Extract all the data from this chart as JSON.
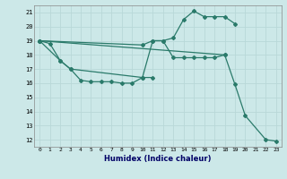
{
  "xlabel": "Humidex (Indice chaleur)",
  "ylabel": "",
  "bg_color": "#cce8e8",
  "grid_color": "#b8d8d8",
  "line_color": "#2a7a6a",
  "xlim": [
    -0.5,
    23.5
  ],
  "ylim": [
    11.5,
    21.5
  ],
  "xticks": [
    0,
    1,
    2,
    3,
    4,
    5,
    6,
    7,
    8,
    9,
    10,
    11,
    12,
    13,
    14,
    15,
    16,
    17,
    18,
    19,
    20,
    21,
    22,
    23
  ],
  "yticks": [
    12,
    13,
    14,
    15,
    16,
    17,
    18,
    19,
    20,
    21
  ],
  "series": [
    {
      "x": [
        0,
        1,
        2,
        3,
        4,
        5,
        6,
        7,
        8,
        9,
        10,
        11
      ],
      "y": [
        19,
        18.8,
        17.6,
        17.0,
        16.2,
        16.1,
        16.1,
        16.1,
        16.0,
        16.0,
        16.4,
        16.4
      ]
    },
    {
      "x": [
        0,
        2,
        3,
        10,
        11,
        12,
        13,
        14,
        15,
        16,
        17,
        18
      ],
      "y": [
        19,
        17.6,
        17.0,
        16.4,
        19.0,
        19.0,
        17.8,
        17.8,
        17.8,
        17.8,
        17.8,
        18.0
      ]
    },
    {
      "x": [
        0,
        10,
        11,
        12,
        13,
        14,
        15,
        16,
        17,
        18,
        19
      ],
      "y": [
        19,
        18.7,
        19.0,
        19.0,
        19.2,
        20.5,
        21.1,
        20.7,
        20.7,
        20.7,
        20.2
      ]
    },
    {
      "x": [
        0,
        18,
        19,
        20,
        22,
        23
      ],
      "y": [
        19,
        18.0,
        15.9,
        13.7,
        12.0,
        11.9
      ]
    }
  ]
}
